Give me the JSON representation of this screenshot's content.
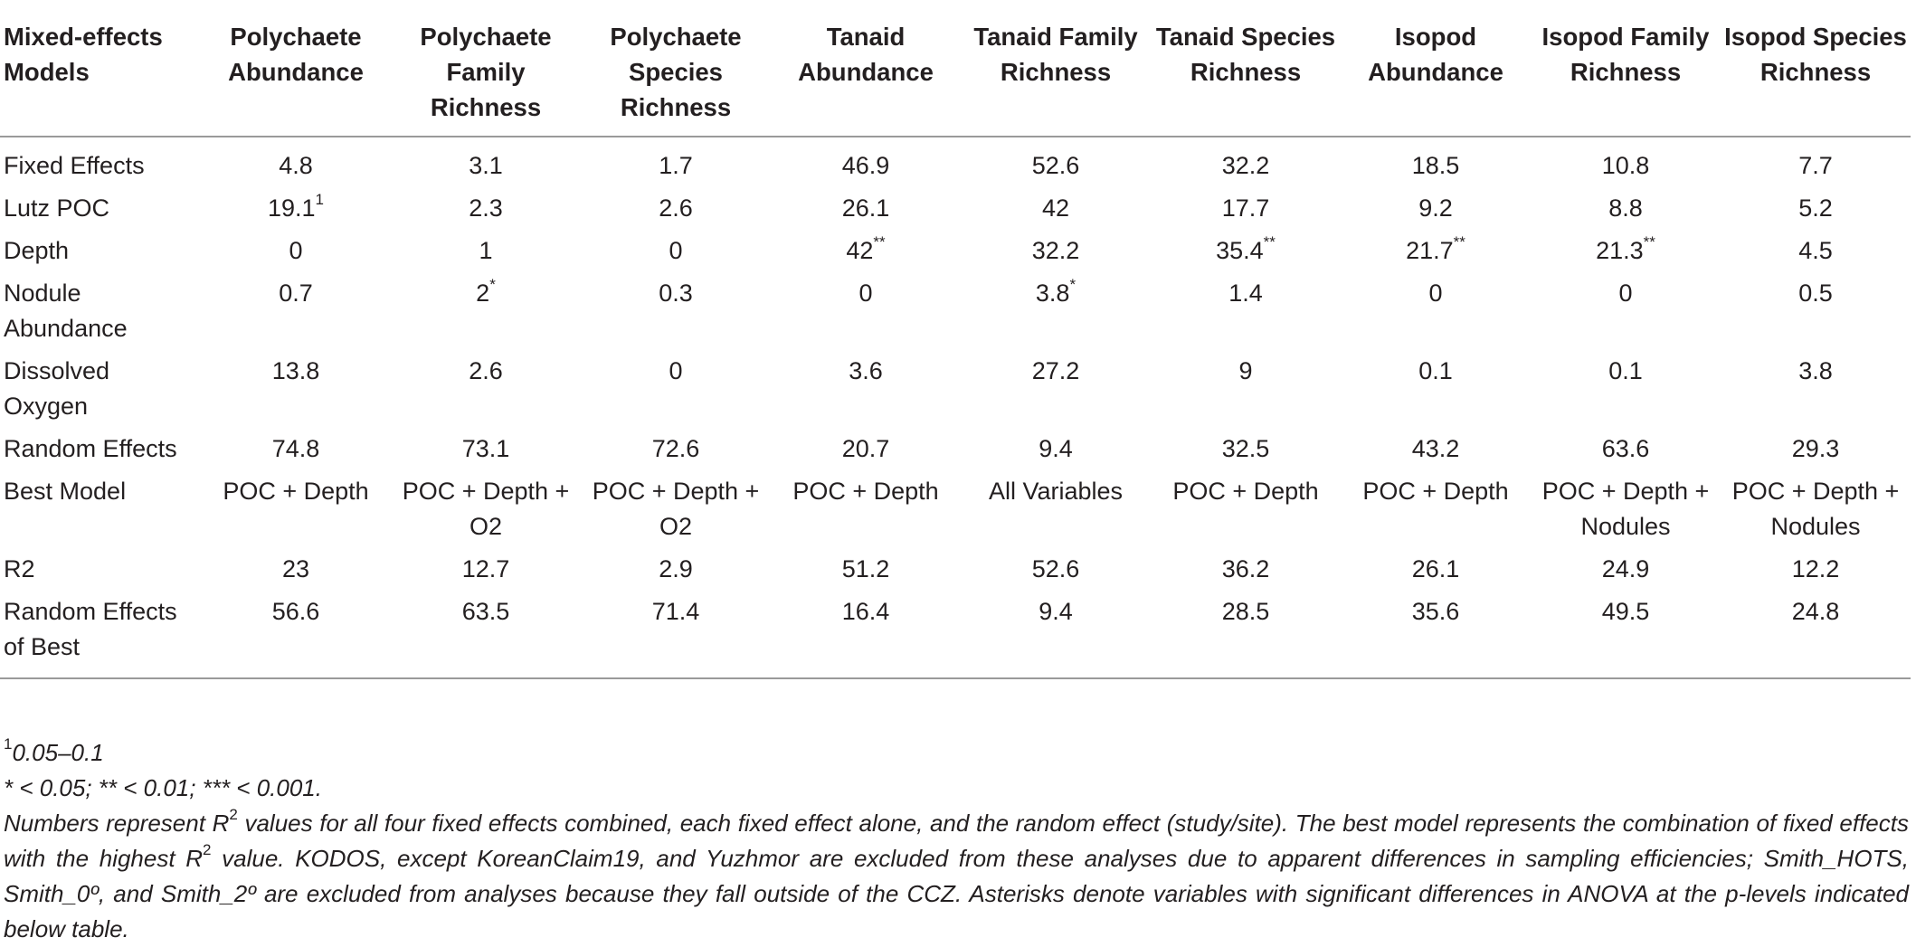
{
  "table": {
    "columns": [
      "Mixed-effects Models",
      "Polychaete Abundance",
      "Polychaete Family Richness",
      "Polychaete Species Richness",
      "Tanaid Abundance",
      "Tanaid Family Richness",
      "Tanaid Species Richness",
      "Isopod Abundance",
      "Isopod Family Richness",
      "Isopod Species Richness"
    ],
    "rows": [
      {
        "label": "Fixed Effects",
        "cells": [
          {
            "v": "4.8"
          },
          {
            "v": "3.1"
          },
          {
            "v": "1.7"
          },
          {
            "v": "46.9"
          },
          {
            "v": "52.6"
          },
          {
            "v": "32.2"
          },
          {
            "v": "18.5"
          },
          {
            "v": "10.8"
          },
          {
            "v": "7.7"
          }
        ]
      },
      {
        "label": "Lutz POC",
        "cells": [
          {
            "v": "19.1",
            "sup": "1"
          },
          {
            "v": "2.3"
          },
          {
            "v": "2.6"
          },
          {
            "v": "26.1"
          },
          {
            "v": "42"
          },
          {
            "v": "17.7"
          },
          {
            "v": "9.2"
          },
          {
            "v": "8.8"
          },
          {
            "v": "5.2"
          }
        ]
      },
      {
        "label": "Depth",
        "cells": [
          {
            "v": "0"
          },
          {
            "v": "1"
          },
          {
            "v": "0"
          },
          {
            "v": "42",
            "sup": "**"
          },
          {
            "v": "32.2"
          },
          {
            "v": "35.4",
            "sup": "**"
          },
          {
            "v": "21.7",
            "sup": "**"
          },
          {
            "v": "21.3",
            "sup": "**"
          },
          {
            "v": "4.5"
          }
        ]
      },
      {
        "label": "Nodule Abundance",
        "cells": [
          {
            "v": "0.7"
          },
          {
            "v": "2",
            "sup": "*"
          },
          {
            "v": "0.3"
          },
          {
            "v": "0"
          },
          {
            "v": "3.8",
            "sup": "*"
          },
          {
            "v": "1.4"
          },
          {
            "v": "0"
          },
          {
            "v": "0"
          },
          {
            "v": "0.5"
          }
        ]
      },
      {
        "label": "Dissolved Oxygen",
        "cells": [
          {
            "v": "13.8"
          },
          {
            "v": "2.6"
          },
          {
            "v": "0"
          },
          {
            "v": "3.6"
          },
          {
            "v": "27.2"
          },
          {
            "v": "9"
          },
          {
            "v": "0.1"
          },
          {
            "v": "0.1"
          },
          {
            "v": "3.8"
          }
        ]
      },
      {
        "label": "Random Effects",
        "cells": [
          {
            "v": "74.8"
          },
          {
            "v": "73.1"
          },
          {
            "v": "72.6"
          },
          {
            "v": "20.7"
          },
          {
            "v": "9.4"
          },
          {
            "v": "32.5"
          },
          {
            "v": "43.2"
          },
          {
            "v": "63.6"
          },
          {
            "v": "29.3"
          }
        ]
      },
      {
        "label": "Best Model",
        "cells": [
          {
            "v": "POC + Depth"
          },
          {
            "v": "POC + Depth + O2"
          },
          {
            "v": "POC + Depth + O2"
          },
          {
            "v": "POC + Depth"
          },
          {
            "v": "All Variables"
          },
          {
            "v": "POC + Depth"
          },
          {
            "v": "POC + Depth"
          },
          {
            "v": "POC + Depth + Nodules"
          },
          {
            "v": "POC + Depth + Nodules"
          }
        ]
      },
      {
        "label": "R2",
        "cells": [
          {
            "v": "23"
          },
          {
            "v": "12.7"
          },
          {
            "v": "2.9"
          },
          {
            "v": "51.2"
          },
          {
            "v": "52.6"
          },
          {
            "v": "36.2"
          },
          {
            "v": "26.1"
          },
          {
            "v": "24.9"
          },
          {
            "v": "12.2"
          }
        ]
      },
      {
        "label": "Random Effects of Best",
        "cells": [
          {
            "v": "56.6"
          },
          {
            "v": "63.5"
          },
          {
            "v": "71.4"
          },
          {
            "v": "16.4"
          },
          {
            "v": "9.4"
          },
          {
            "v": "28.5"
          },
          {
            "v": "35.6"
          },
          {
            "v": "49.5"
          },
          {
            "v": "24.8"
          }
        ]
      }
    ]
  },
  "notes": {
    "footnote1_marker": "1",
    "footnote1_text": "0.05–0.1",
    "significance": "* < 0.05; ** < 0.01; *** < 0.001.",
    "desc_part1": "Numbers represent R",
    "desc_sup1": "2",
    "desc_part2": " values for all four fixed effects combined, each fixed effect alone, and the random effect (study/site). The best model represents the combination of fixed effects with the highest R",
    "desc_sup2": "2",
    "desc_part3": " value. KODOS, except KoreanClaim19, and Yuzhmor are excluded from these analyses due to apparent differences in sampling efficiencies; Smith_HOTS, Smith_0º, and Smith_2º are excluded from analyses because they fall outside of the CCZ. Asterisks denote variables with significant differences in ANOVA at the p-levels indicated below table."
  }
}
